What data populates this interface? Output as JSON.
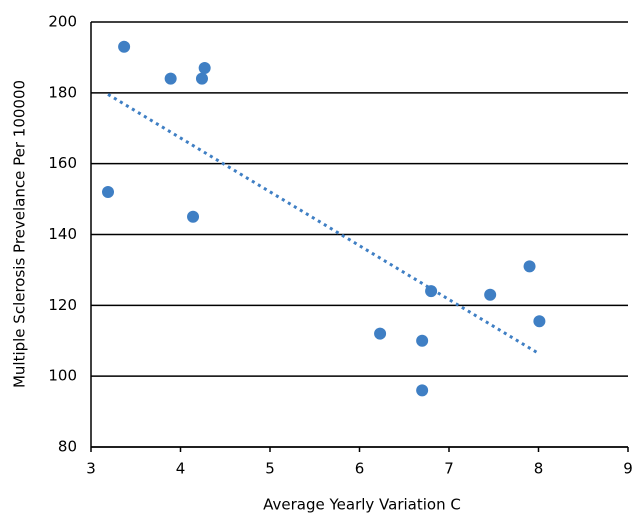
{
  "chart_data": {
    "type": "scatter",
    "xlabel": "Average Yearly Variation C",
    "ylabel": "Multiple Sclerosis Prevelance Per 100000",
    "x": [
      3.37,
      3.89,
      4.27,
      4.24,
      3.19,
      4.14,
      6.8,
      7.46,
      7.9,
      8.01,
      6.23,
      6.7,
      6.7
    ],
    "values": [
      193,
      184,
      187,
      184,
      152,
      145,
      124,
      123,
      131,
      115.5,
      112,
      110,
      96
    ],
    "color": "#3f7fc4",
    "trendline": "linear",
    "xlim": [
      3,
      9
    ],
    "xticks": [
      3,
      4,
      5,
      6,
      7,
      8,
      9
    ],
    "ylim": [
      80,
      200
    ],
    "yticks": [
      80,
      100,
      120,
      140,
      160,
      180,
      200
    ],
    "grid": true
  }
}
